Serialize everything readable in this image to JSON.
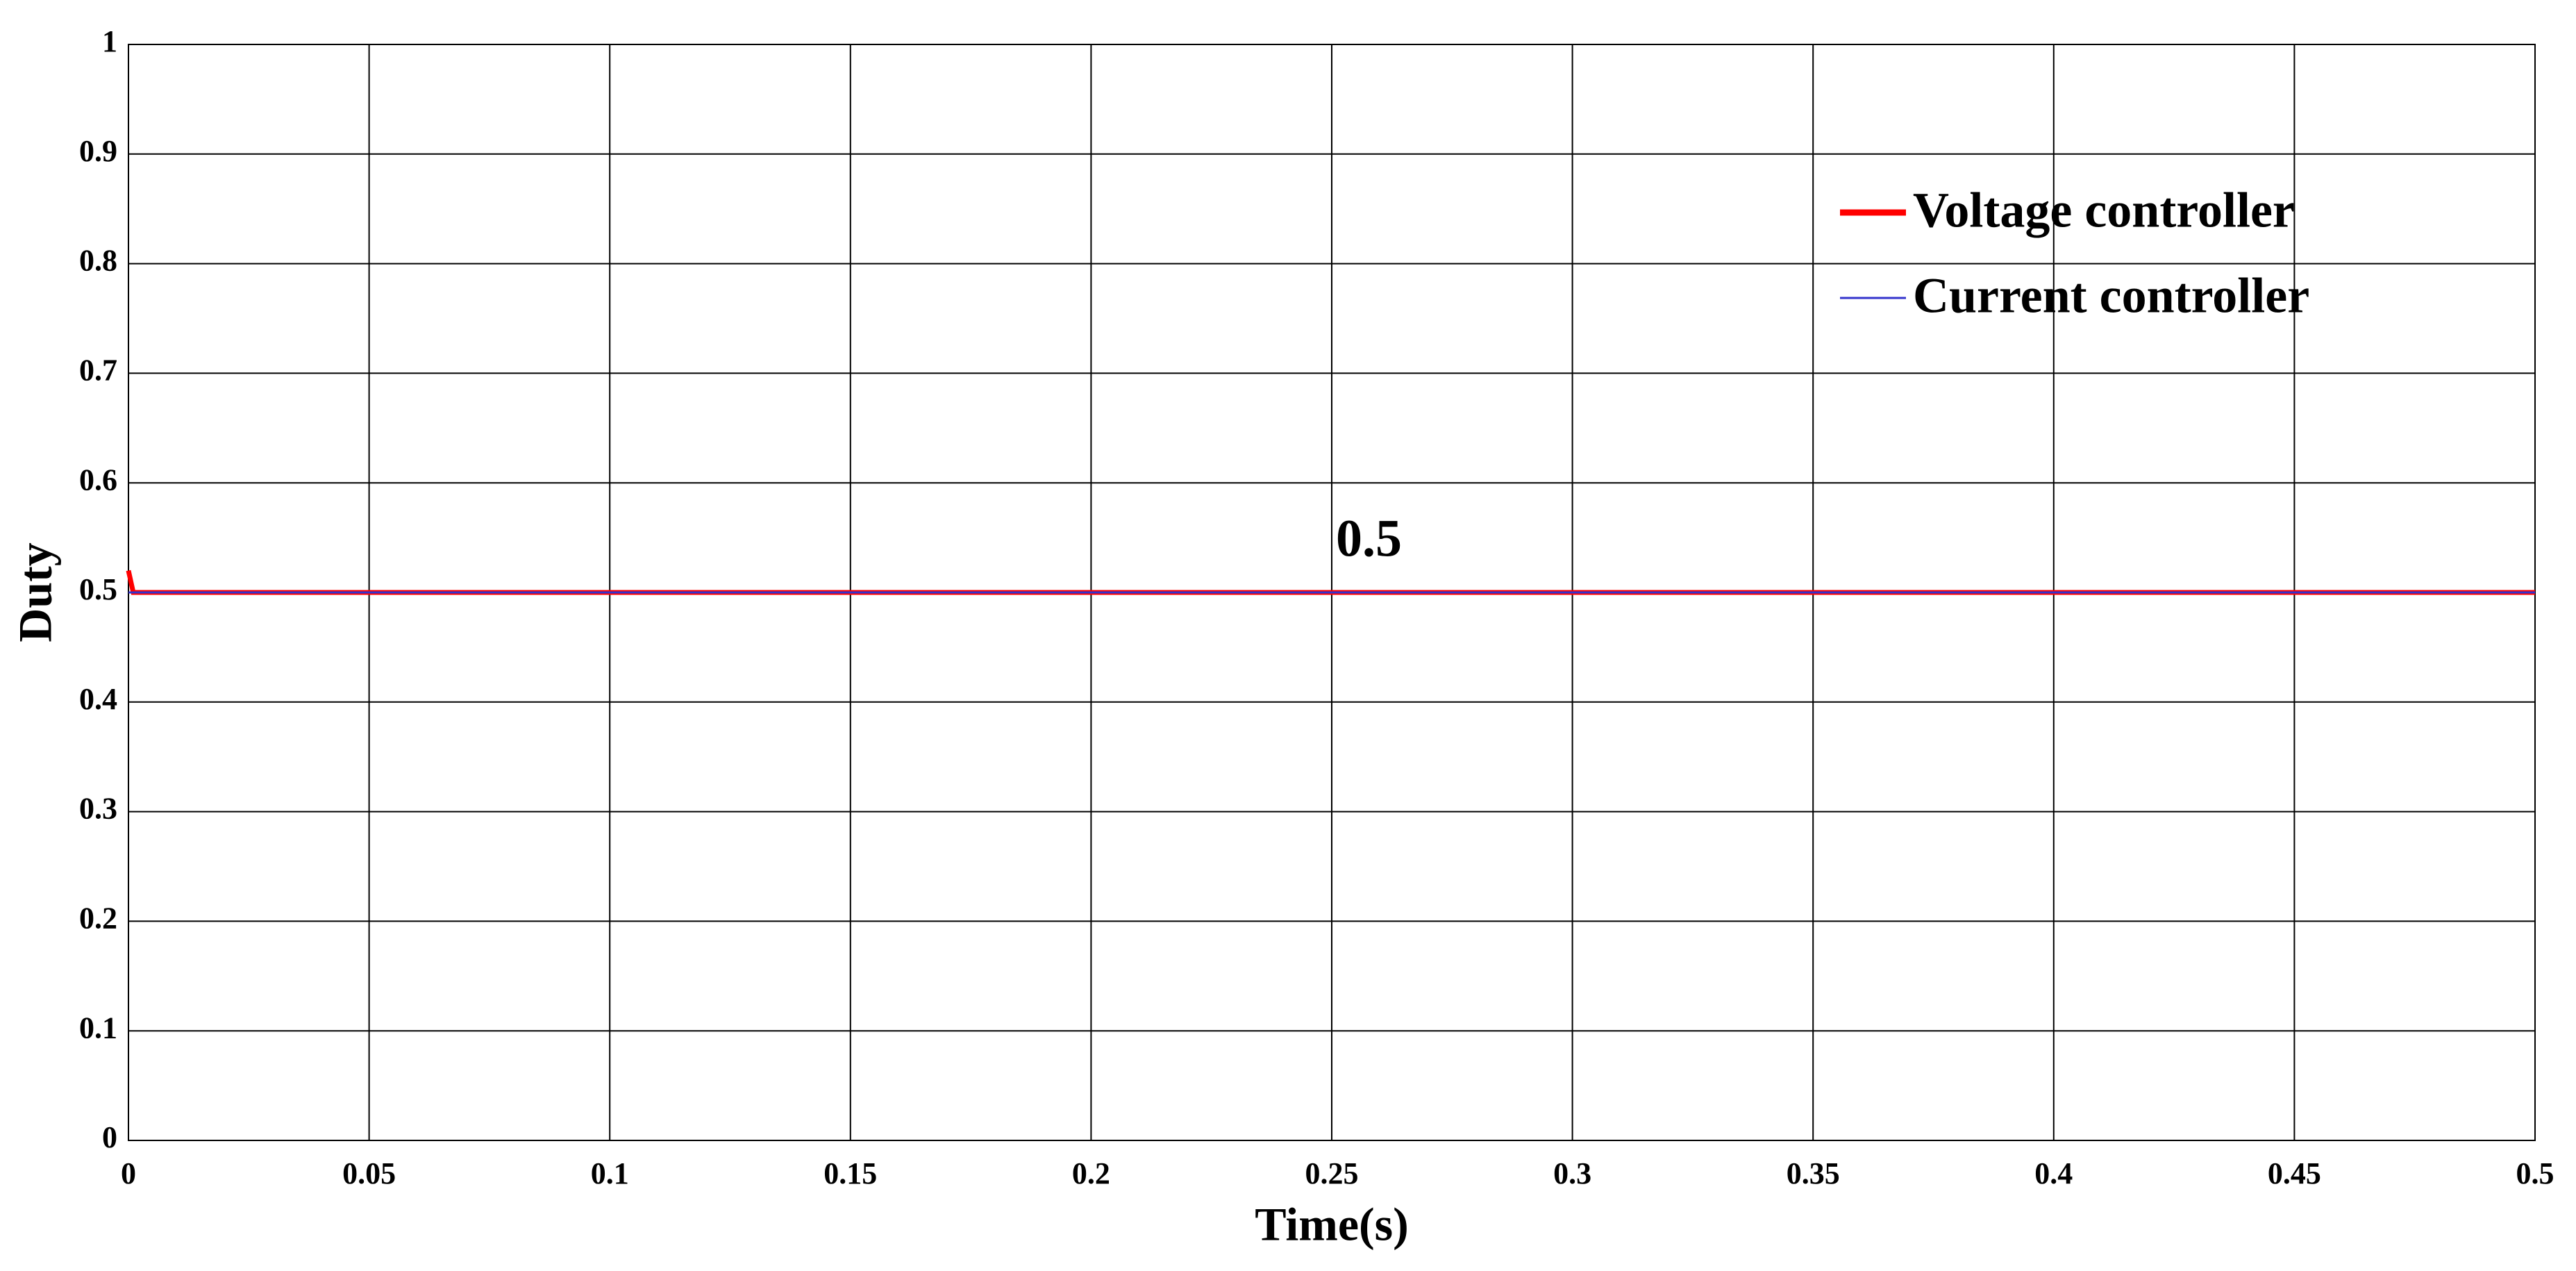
{
  "chart_data": {
    "type": "line",
    "xlabel": "Time(s)",
    "ylabel": "Duty",
    "x": [
      0,
      0.001,
      0.5
    ],
    "series": [
      {
        "name": "Voltage controller",
        "color": "#ff0000",
        "values": [
          0.52,
          0.5,
          0.5
        ]
      },
      {
        "name": "Current controller",
        "color": "#3333cc",
        "values": [
          0.5,
          0.5,
          0.5
        ]
      }
    ],
    "annotation": "0.5",
    "xlim": [
      0,
      0.5
    ],
    "xticks": [
      0,
      0.05,
      0.1,
      0.15,
      0.2,
      0.25,
      0.3,
      0.35,
      0.4,
      0.45,
      0.5
    ],
    "ylim": [
      0,
      1
    ],
    "yticks": [
      0,
      0.1,
      0.2,
      0.3,
      0.4,
      0.5,
      0.6,
      0.7,
      0.8,
      0.9,
      1
    ],
    "grid": true,
    "legend": "upper right"
  }
}
